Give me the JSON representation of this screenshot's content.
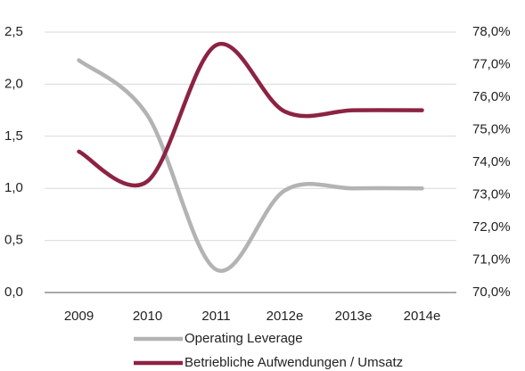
{
  "chart_data": {
    "type": "line",
    "categories": [
      "2009",
      "2010",
      "2011",
      "2012e",
      "2013e",
      "2014e"
    ],
    "series": [
      {
        "name": "Operating Leverage",
        "color": "#b3b3b3",
        "values": [
          2.23,
          1.7,
          0.22,
          0.98,
          1.0,
          1.0
        ]
      },
      {
        "name": "Betriebliche Aufwendungen / Umsatz",
        "color": "#8c2342",
        "axis": "y2",
        "values": [
          74.33,
          73.42,
          77.6,
          75.56,
          75.6,
          75.6
        ]
      }
    ],
    "ylim": [
      0,
      2.5
    ],
    "yticks": [
      {
        "value": 0,
        "label": "0,0"
      },
      {
        "value": 0.5,
        "label": "0,5"
      },
      {
        "value": 1,
        "label": "1,0"
      },
      {
        "value": 1.5,
        "label": "1,5"
      },
      {
        "value": 2,
        "label": "2,0"
      },
      {
        "value": 2.5,
        "label": "2,5"
      }
    ],
    "y2lim": [
      70,
      78
    ],
    "y2ticks": [
      {
        "value": 70,
        "label": "70,0%"
      },
      {
        "value": 71,
        "label": "71,0%"
      },
      {
        "value": 72,
        "label": "72,0%"
      },
      {
        "value": 73,
        "label": "73,0%"
      },
      {
        "value": 74,
        "label": "74,0%"
      },
      {
        "value": 75,
        "label": "75,0%"
      },
      {
        "value": 76,
        "label": "76,0%"
      },
      {
        "value": 77,
        "label": "77,0%"
      },
      {
        "value": 78,
        "label": "78,0%"
      }
    ],
    "grid": true
  }
}
